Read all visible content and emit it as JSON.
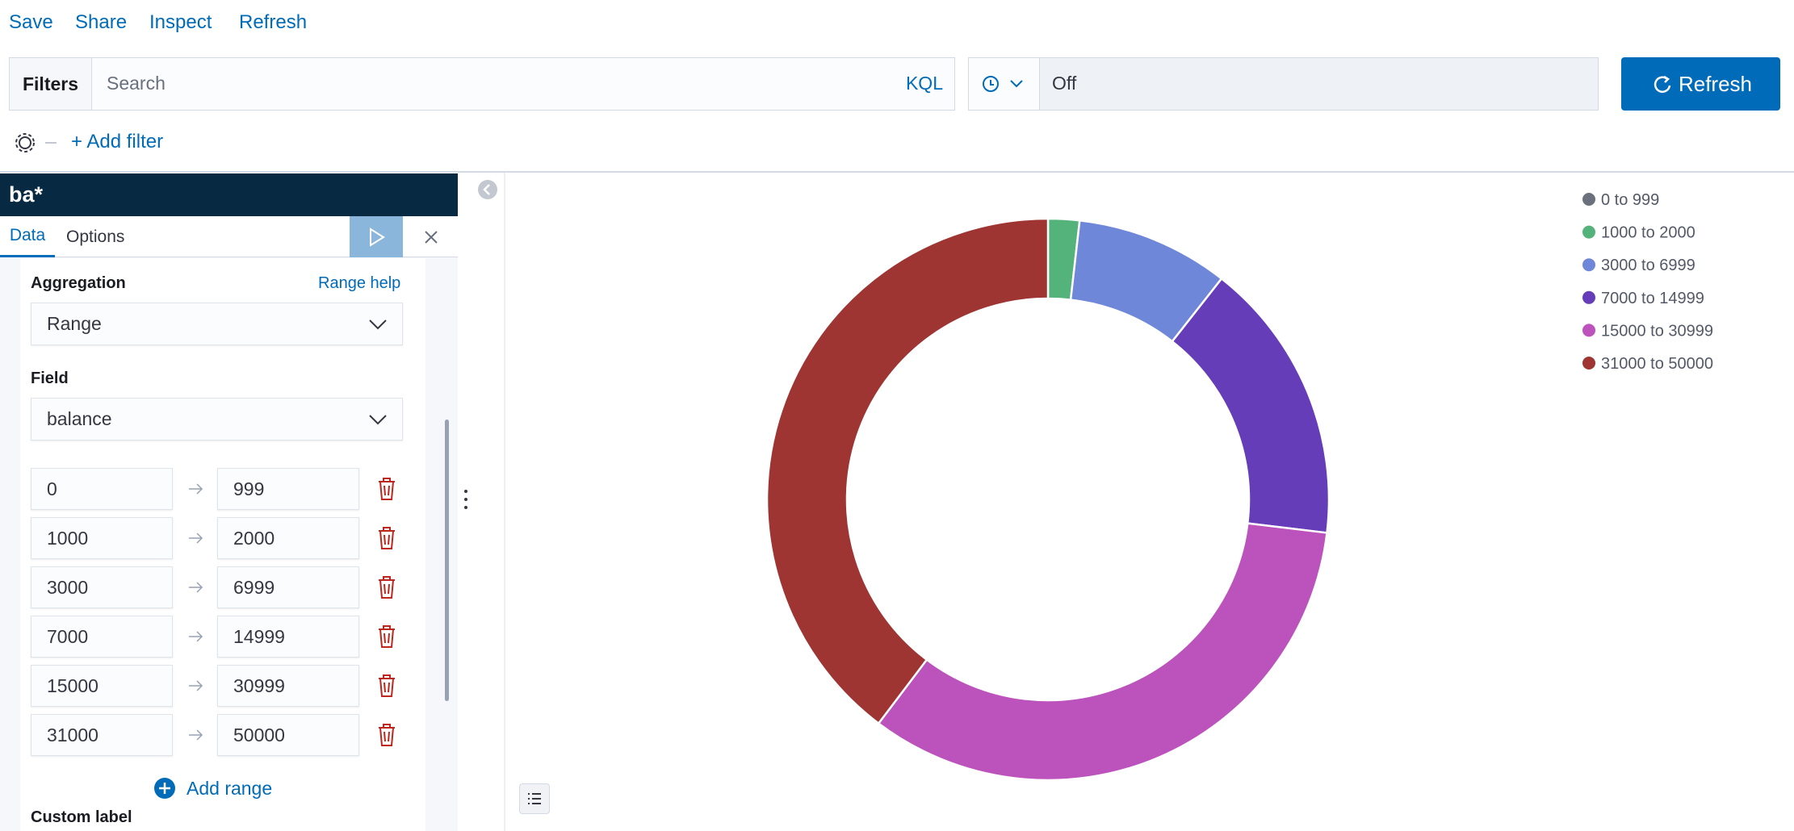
{
  "nav": [
    "Save",
    "Share",
    "Inspect",
    "Refresh"
  ],
  "filter_bar": {
    "label": "Filters",
    "search_placeholder": "Search",
    "language": "KQL",
    "refresh_interval": "Off",
    "refresh_button": "Refresh",
    "add_filter": "+ Add filter"
  },
  "sidebar": {
    "index_pattern": "ba*",
    "tabs": [
      "Data",
      "Options"
    ],
    "aggregation_label": "Aggregation",
    "help_link": "Range help",
    "aggregation": "Range",
    "field_label": "Field",
    "field": "balance",
    "ranges": [
      {
        "from": 0,
        "to": 999
      },
      {
        "from": 1000,
        "to": 2000
      },
      {
        "from": 3000,
        "to": 6999
      },
      {
        "from": 7000,
        "to": 14999
      },
      {
        "from": 15000,
        "to": 30999
      },
      {
        "from": 31000,
        "to": 50000
      }
    ],
    "add_range": "Add range",
    "custom_label": "Custom label"
  },
  "chart_data": {
    "type": "pie",
    "donut": true,
    "categories": [
      "0 to 999",
      "1000 to 2000",
      "3000 to 6999",
      "7000 to 14999",
      "15000 to 30999",
      "31000 to 50000"
    ],
    "values": [
      0,
      1.8,
      8.8,
      16.3,
      33.4,
      39.7
    ],
    "colors": [
      "#6a717d",
      "#54b37a",
      "#6f87d8",
      "#663db8",
      "#bc52bc",
      "#9e3533"
    ],
    "legend": "top-right"
  }
}
